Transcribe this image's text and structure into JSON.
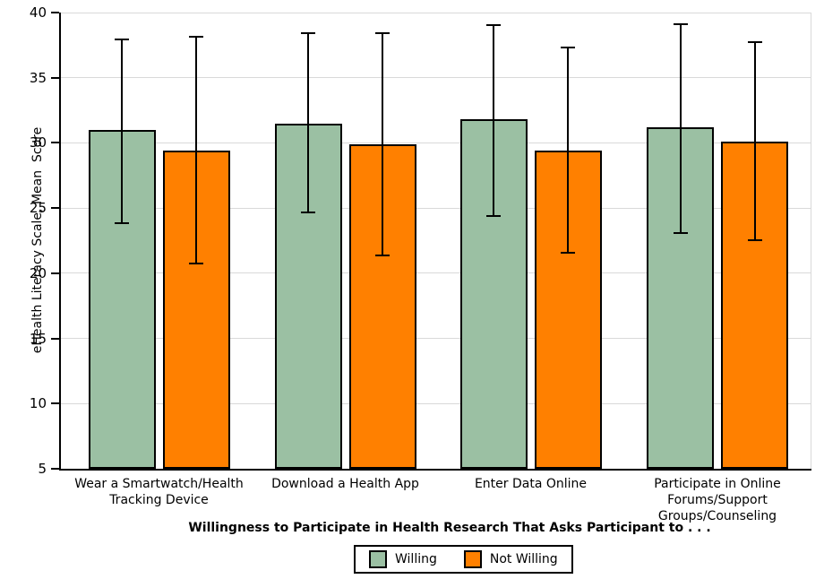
{
  "chart_data": {
    "type": "bar",
    "title": "",
    "xlabel": "Willingness to Participate in Health Research That Asks Participant to . . .",
    "ylabel": "eHealth Literacy Scale, Mean  Score",
    "ylim": [
      5,
      40
    ],
    "yticks": [
      5,
      10,
      15,
      20,
      25,
      30,
      35,
      40
    ],
    "grid": true,
    "legend_position": "bottom-center",
    "error_bars": true,
    "categories": [
      "Wear a Smartwatch/Health Tracking Device",
      "Download a Health App",
      "Enter Data Online",
      "Participate in Online Forums/Support Groups/Counseling"
    ],
    "category_label_lines": [
      [
        "Wear a Smartwatch/Health",
        "Tracking Device"
      ],
      [
        "Download a Health App"
      ],
      [
        "Enter Data Online"
      ],
      [
        "Participate in Online",
        "Forums/Support",
        "Groups/Counseling"
      ]
    ],
    "series": [
      {
        "name": "Willing",
        "color": "#9BC0A3",
        "values": [
          31.0,
          31.5,
          31.8,
          31.2
        ],
        "error_low": [
          23.8,
          24.6,
          24.3,
          23.0
        ],
        "error_high": [
          38.0,
          38.5,
          39.1,
          39.2
        ]
      },
      {
        "name": "Not Willing",
        "color": "#FF8000",
        "values": [
          29.4,
          29.9,
          29.4,
          30.1
        ],
        "error_low": [
          20.7,
          21.3,
          21.5,
          22.5
        ],
        "error_high": [
          38.2,
          38.5,
          37.4,
          37.8
        ]
      }
    ]
  },
  "colors": {
    "background": "#FFFFFF",
    "axis": "#000000",
    "gridline": "#D9D9D9",
    "bar_border": "#000000",
    "error_bar": "#000000",
    "legend_border": "#000000",
    "text": "#000000"
  }
}
